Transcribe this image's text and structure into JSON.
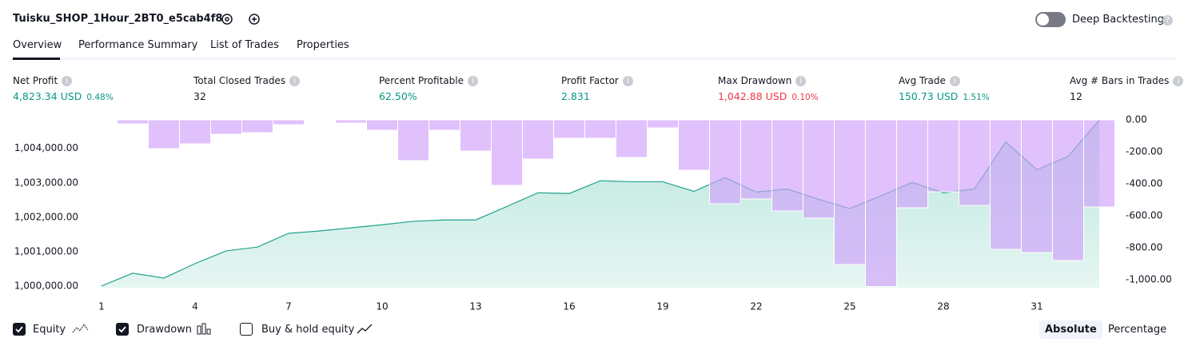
{
  "header": {
    "title": "Tuisku_SHOP_1Hour_2BT0_e5cab4f8",
    "toggle_label": "Deep Backtesting",
    "toggle_on": false
  },
  "tabs": [
    "Overview",
    "Performance Summary",
    "List of Trades",
    "Properties"
  ],
  "stats": [
    {
      "label": "Net Profit",
      "value": "4,823.34 USD",
      "percent": "0.48%",
      "tone": "positive"
    },
    {
      "label": "Total Closed Trades",
      "value": "32",
      "tone": "neutral"
    },
    {
      "label": "Percent Profitable",
      "value": "62.50%",
      "tone": "positive"
    },
    {
      "label": "Profit Factor",
      "value": "2.831",
      "tone": "positive"
    },
    {
      "label": "Max Drawdown",
      "value": "1,042.88 USD",
      "percent": "0.10%",
      "tone": "negative"
    },
    {
      "label": "Avg Trade",
      "value": "150.73 USD",
      "percent": "1.51%",
      "tone": "positive"
    },
    {
      "label": "Avg # Bars in Trades",
      "value": "12",
      "tone": "neutral"
    }
  ],
  "chart_data": {
    "type": "line",
    "x": [
      1,
      2,
      3,
      4,
      5,
      6,
      7,
      8,
      9,
      10,
      11,
      12,
      13,
      14,
      15,
      16,
      17,
      18,
      19,
      20,
      21,
      22,
      23,
      24,
      25,
      26,
      27,
      28,
      29,
      30,
      31,
      32,
      33
    ],
    "xlim": [
      0.5,
      33.5
    ],
    "xticks": [
      1,
      4,
      7,
      10,
      13,
      16,
      19,
      22,
      25,
      28,
      31
    ],
    "ylim": [
      999950,
      1004830
    ],
    "yticks": [
      {
        "value": 1000000,
        "label": "1,000,000.00"
      },
      {
        "value": 1001000,
        "label": "1,001,000.00"
      },
      {
        "value": 1002000,
        "label": "1,002,000.00"
      },
      {
        "value": 1003000,
        "label": "1,003,000.00"
      },
      {
        "value": 1004000,
        "label": "1,004,000.00"
      }
    ],
    "y2lim": [
      -1050,
      0
    ],
    "y2ticks": [
      {
        "value": 0,
        "label": "0.00"
      },
      {
        "value": -200,
        "label": "-200.00"
      },
      {
        "value": -400,
        "label": "-400.00"
      },
      {
        "value": -600,
        "label": "-600.00"
      },
      {
        "value": -800,
        "label": "-800.00"
      },
      {
        "value": -1000,
        "label": "-1,000.00"
      }
    ],
    "series": [
      {
        "name": "Equity",
        "color": "#22a38c",
        "checked": true,
        "values": [
          1000000,
          1000370,
          1000230,
          1000650,
          1001020,
          1001130,
          1001530,
          1001600,
          1001690,
          1001780,
          1001880,
          1001920,
          1001920,
          1002310,
          1002710,
          1002690,
          1003060,
          1003030,
          1003030,
          1002750,
          1003150,
          1002730,
          1002820,
          1002520,
          1002250,
          1002620,
          1003010,
          1002710,
          1002820,
          1004190,
          1003380,
          1003770,
          1004823.34
        ]
      },
      {
        "name": "Drawdown",
        "type": "bar",
        "axis": "y2",
        "color": "#cf9ffa",
        "checked": true,
        "values": [
          -5,
          -25,
          -180,
          -150,
          -90,
          -80,
          -30,
          -5,
          -20,
          -65,
          -255,
          -65,
          -195,
          -410,
          -245,
          -115,
          -115,
          -235,
          -50,
          -315,
          -525,
          -495,
          -570,
          -615,
          -905,
          -1042.88,
          -550,
          -450,
          -535,
          -810,
          -830,
          -880,
          -545
        ]
      }
    ]
  },
  "buy_hold": {
    "label": "Buy & hold equity",
    "checked": false
  },
  "buttons": [
    "Absolute",
    "Percentage"
  ]
}
